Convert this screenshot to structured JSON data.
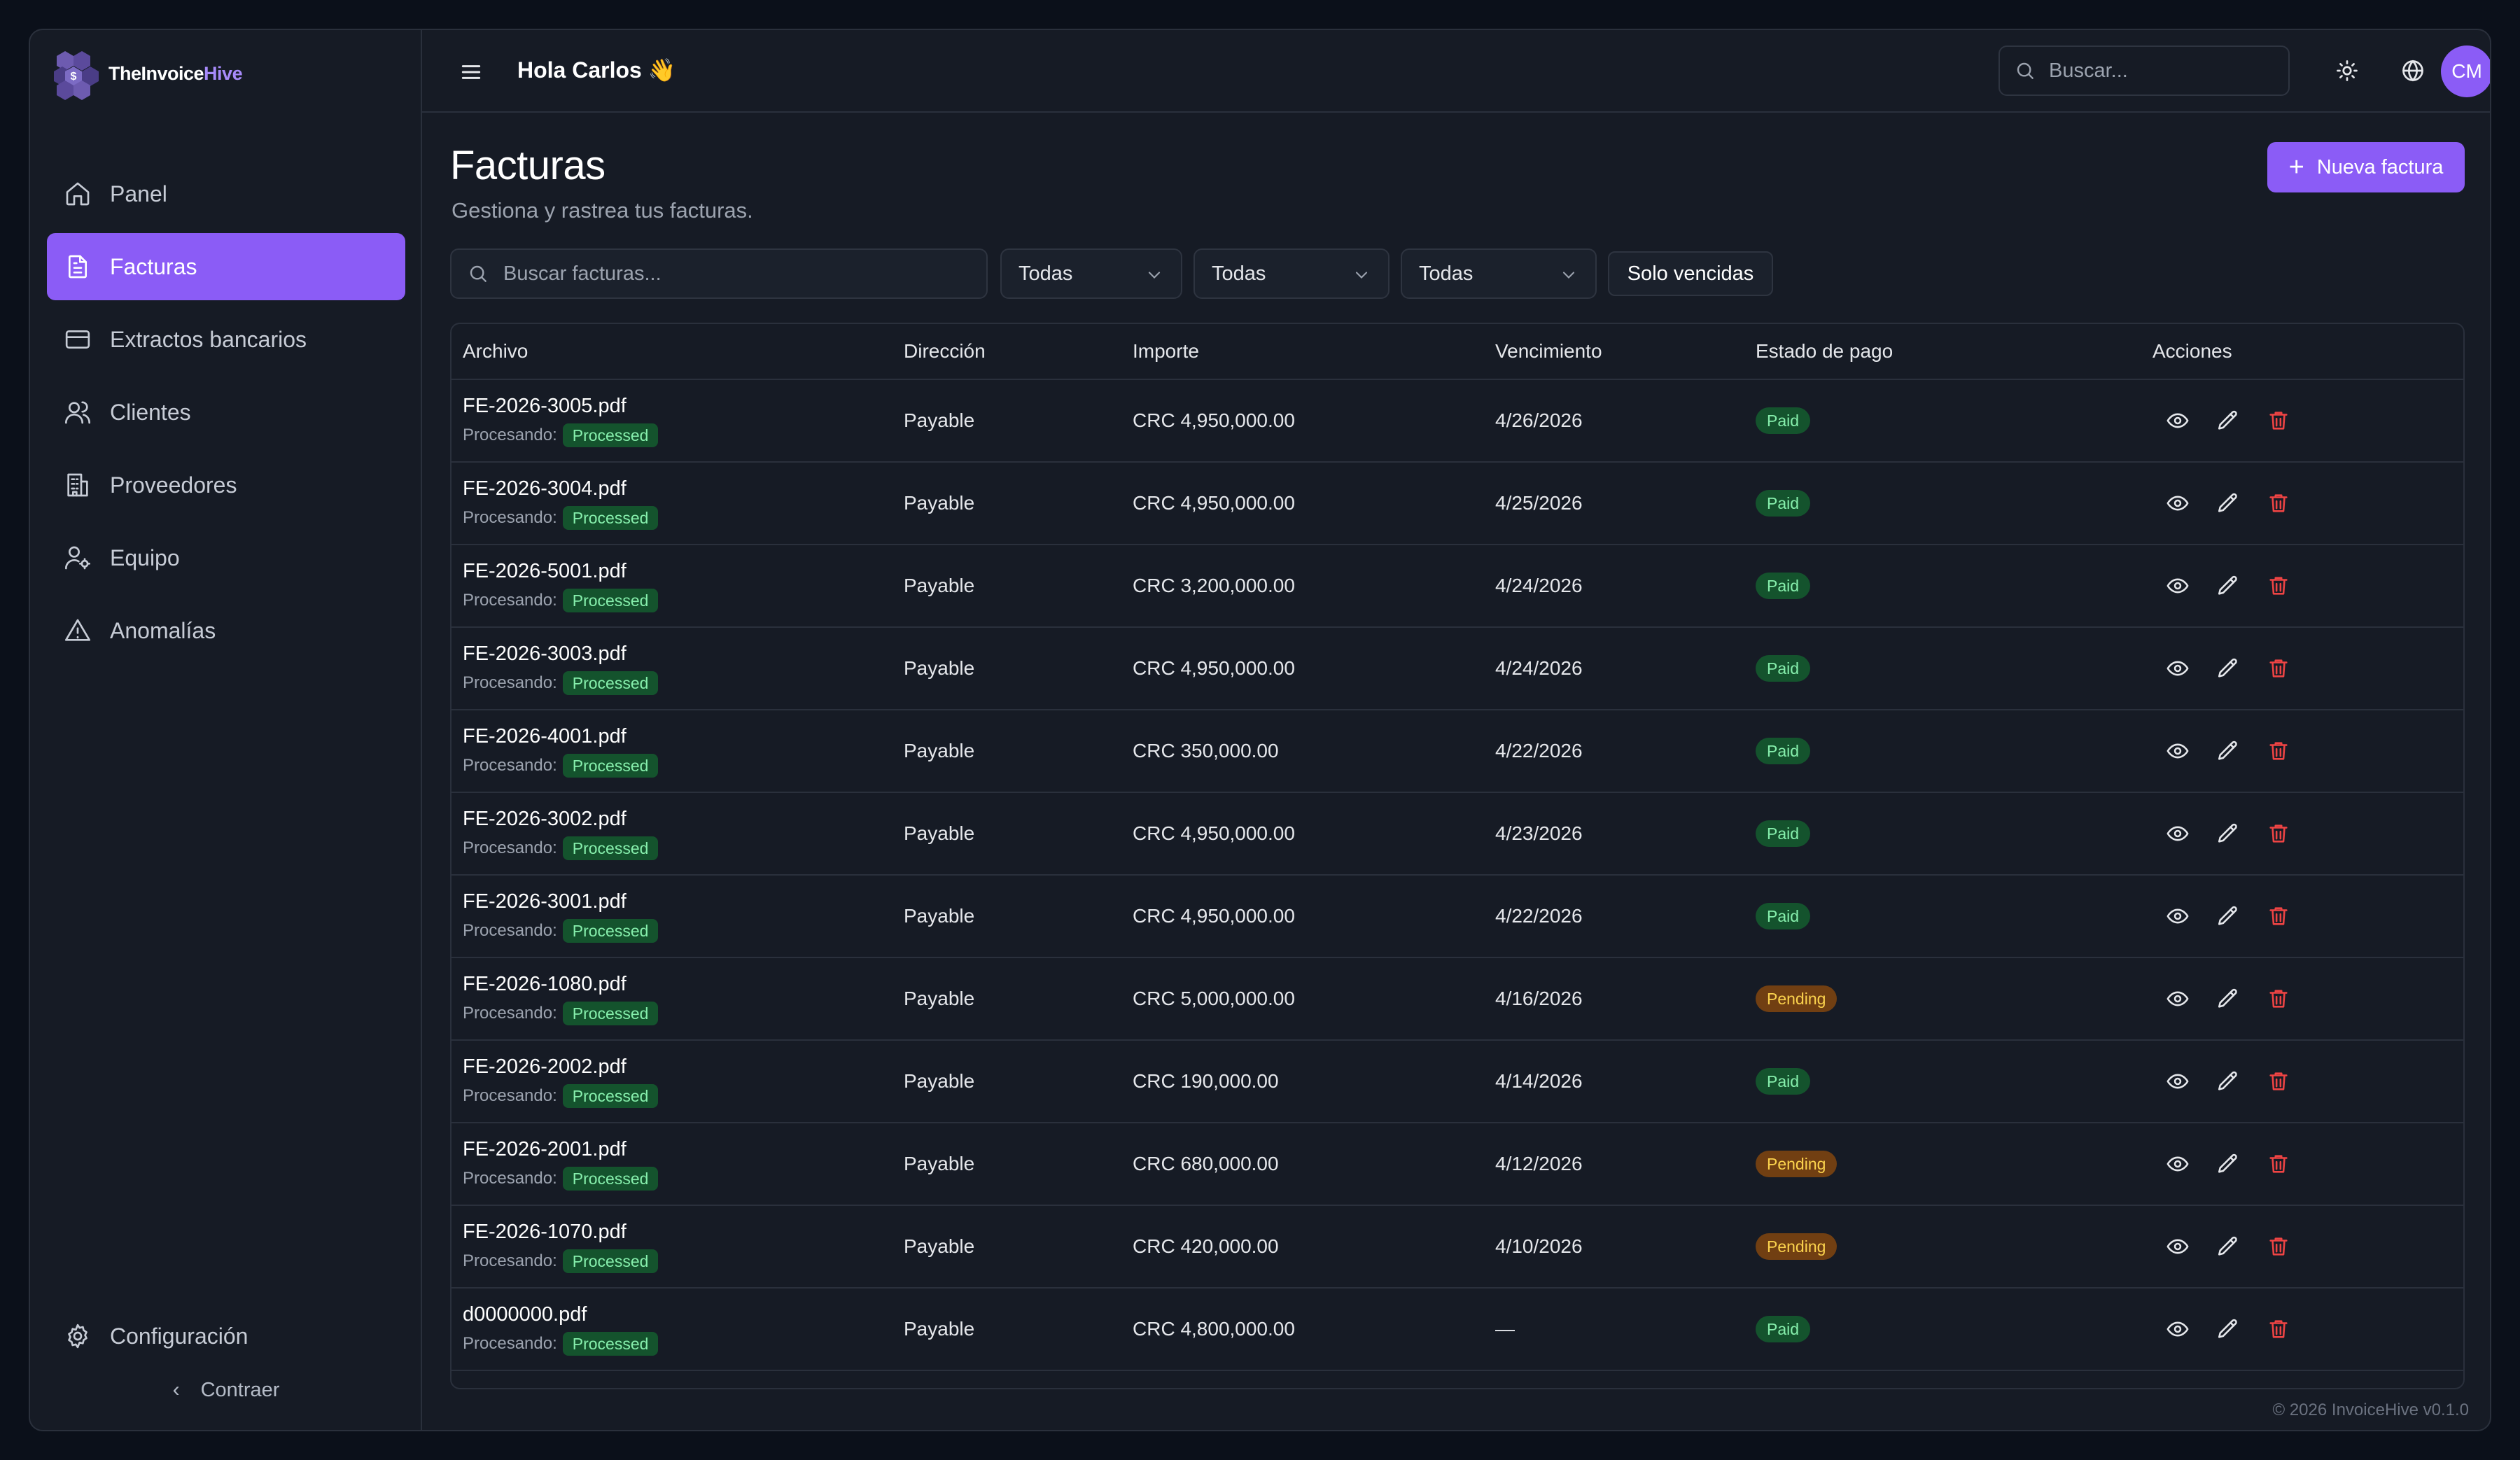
{
  "brand": {
    "name_prefix": "TheInvoice",
    "name_suffix": "Hive"
  },
  "sidebar": {
    "items": [
      {
        "label": "Panel",
        "icon": "home-icon",
        "active": false
      },
      {
        "label": "Facturas",
        "icon": "document-icon",
        "active": true
      },
      {
        "label": "Extractos bancarios",
        "icon": "credit-card-icon",
        "active": false
      },
      {
        "label": "Clientes",
        "icon": "users-icon",
        "active": false
      },
      {
        "label": "Proveedores",
        "icon": "building-icon",
        "active": false
      },
      {
        "label": "Equipo",
        "icon": "user-cog-icon",
        "active": false
      },
      {
        "label": "Anomalías",
        "icon": "warning-icon",
        "active": false
      }
    ],
    "settings_label": "Configuración",
    "collapse_label": "Contraer"
  },
  "header": {
    "greeting": "Hola Carlos 👋",
    "search_placeholder": "Buscar...",
    "avatar_initials": "CM"
  },
  "page": {
    "title": "Facturas",
    "subtitle": "Gestiona y rastrea tus facturas.",
    "new_button": "Nueva factura"
  },
  "filters": {
    "search_placeholder": "Buscar facturas...",
    "select1": "Todas",
    "select2": "Todas",
    "select3": "Todas",
    "overdue_button": "Solo vencidas"
  },
  "table": {
    "columns": [
      "Archivo",
      "Dirección",
      "Importe",
      "Vencimiento",
      "Estado de pago",
      "Acciones"
    ],
    "processing_label": "Procesando:",
    "rows": [
      {
        "file": "FE-2026-3005.pdf",
        "processing": "Processed",
        "direction": "Payable",
        "amount": "CRC 4,950,000.00",
        "due": "4/26/2026",
        "status": "Paid"
      },
      {
        "file": "FE-2026-3004.pdf",
        "processing": "Processed",
        "direction": "Payable",
        "amount": "CRC 4,950,000.00",
        "due": "4/25/2026",
        "status": "Paid"
      },
      {
        "file": "FE-2026-5001.pdf",
        "processing": "Processed",
        "direction": "Payable",
        "amount": "CRC 3,200,000.00",
        "due": "4/24/2026",
        "status": "Paid"
      },
      {
        "file": "FE-2026-3003.pdf",
        "processing": "Processed",
        "direction": "Payable",
        "amount": "CRC 4,950,000.00",
        "due": "4/24/2026",
        "status": "Paid"
      },
      {
        "file": "FE-2026-4001.pdf",
        "processing": "Processed",
        "direction": "Payable",
        "amount": "CRC 350,000.00",
        "due": "4/22/2026",
        "status": "Paid"
      },
      {
        "file": "FE-2026-3002.pdf",
        "processing": "Processed",
        "direction": "Payable",
        "amount": "CRC 4,950,000.00",
        "due": "4/23/2026",
        "status": "Paid"
      },
      {
        "file": "FE-2026-3001.pdf",
        "processing": "Processed",
        "direction": "Payable",
        "amount": "CRC 4,950,000.00",
        "due": "4/22/2026",
        "status": "Paid"
      },
      {
        "file": "FE-2026-1080.pdf",
        "processing": "Processed",
        "direction": "Payable",
        "amount": "CRC 5,000,000.00",
        "due": "4/16/2026",
        "status": "Pending"
      },
      {
        "file": "FE-2026-2002.pdf",
        "processing": "Processed",
        "direction": "Payable",
        "amount": "CRC 190,000.00",
        "due": "4/14/2026",
        "status": "Paid"
      },
      {
        "file": "FE-2026-2001.pdf",
        "processing": "Processed",
        "direction": "Payable",
        "amount": "CRC 680,000.00",
        "due": "4/12/2026",
        "status": "Pending"
      },
      {
        "file": "FE-2026-1070.pdf",
        "processing": "Processed",
        "direction": "Payable",
        "amount": "CRC 420,000.00",
        "due": "4/10/2026",
        "status": "Pending"
      },
      {
        "file": "d0000000.pdf",
        "processing": "Processed",
        "direction": "Payable",
        "amount": "CRC 4,800,000.00",
        "due": "—",
        "status": "Paid"
      }
    ]
  },
  "footer": "© 2026 InvoiceHive v0.1.0",
  "colors": {
    "accent": "#8b5cf6",
    "paid_bg": "#14532d",
    "pending_bg": "#713f12",
    "danger": "#ef4444"
  }
}
